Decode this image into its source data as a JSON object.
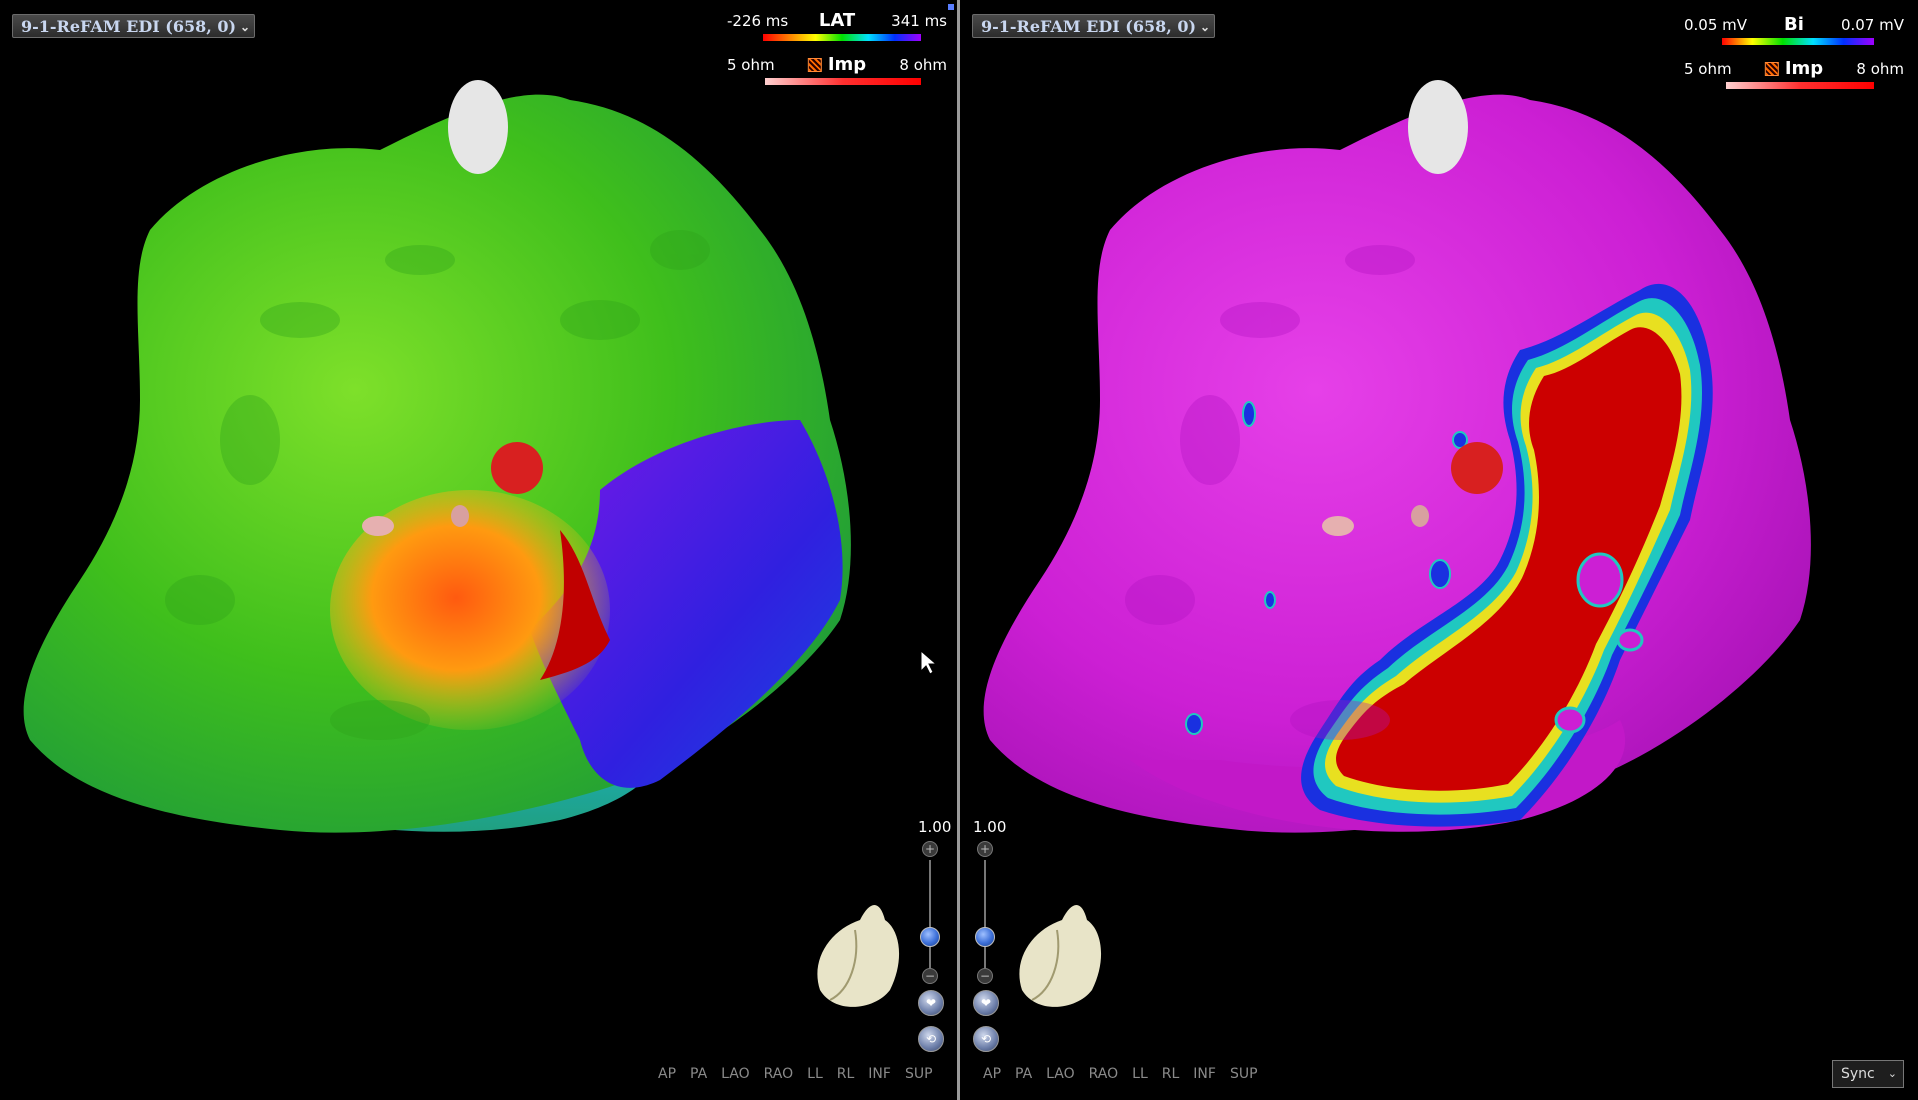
{
  "left": {
    "map_selector": "9-1-ReFAM EDI (658, 0)",
    "legend_lat": {
      "min": "-226 ms",
      "name": "LAT",
      "max": "341 ms"
    },
    "legend_imp": {
      "min": "5 ohm",
      "name": "Imp",
      "max": "8 ohm"
    },
    "scale": "1.00"
  },
  "right": {
    "map_selector": "9-1-ReFAM EDI (658, 0)",
    "legend_bi": {
      "min": "0.05 mV",
      "name": "Bi",
      "max": "0.07 mV"
    },
    "legend_imp": {
      "min": "5 ohm",
      "name": "Imp",
      "max": "8 ohm"
    },
    "scale": "1.00"
  },
  "views": [
    "AP",
    "PA",
    "LAO",
    "RAO",
    "LL",
    "RL",
    "INF",
    "SUP"
  ],
  "sync": "Sync",
  "colors": {
    "lat_green": "#4cc41a",
    "bi_magenta": "#d21fd8",
    "scar_red": "#cc0000",
    "late_blue": "#3a1fe0"
  }
}
